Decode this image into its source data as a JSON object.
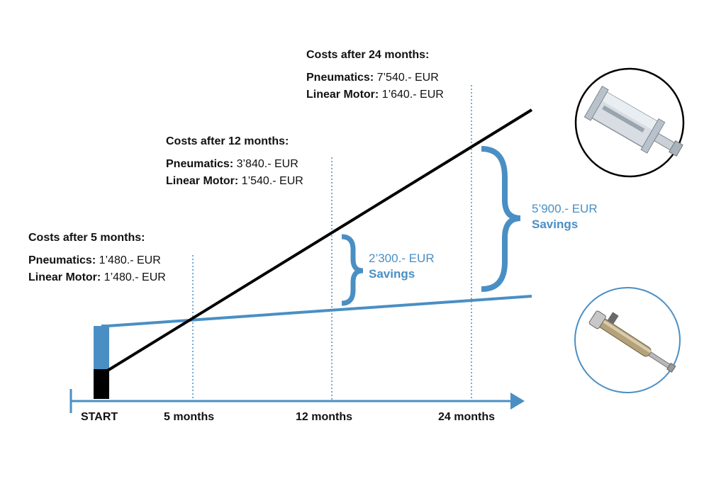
{
  "costs": [
    {
      "title": "Costs after 5 months:",
      "pneumatics_label": "Pneumatics:",
      "pneumatics_value": "1’480.- EUR",
      "linear_label": "Linear Motor:",
      "linear_value": "1’480.- EUR"
    },
    {
      "title": "Costs after 12 months:",
      "pneumatics_label": "Pneumatics:",
      "pneumatics_value": "3’840.- EUR",
      "linear_label": "Linear Motor:",
      "linear_value": "1’540.- EUR"
    },
    {
      "title": "Costs after 24 months:",
      "pneumatics_label": "Pneumatics:",
      "pneumatics_value": "7’540.- EUR",
      "linear_label": "Linear Motor:",
      "linear_value": "1’640.- EUR"
    }
  ],
  "savings": [
    {
      "amount": "2’300.- EUR",
      "label": "Savings"
    },
    {
      "amount": "5’900.- EUR",
      "label": "Savings"
    }
  ],
  "axis": {
    "ticks": [
      "START",
      "5 months",
      "12 months",
      "24 months"
    ]
  },
  "colors": {
    "pneumatics_line": "#000000",
    "linear_line": "#4a8fc4",
    "accent": "#4a8fc4"
  },
  "icons": {
    "pneumatic": "pneumatic-cylinder-icon",
    "linear": "linear-motor-icon"
  }
}
